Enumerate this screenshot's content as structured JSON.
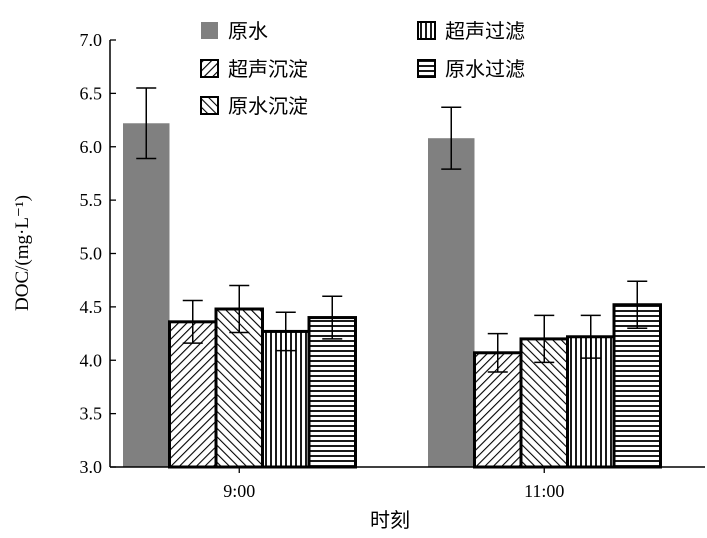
{
  "chart_data": {
    "type": "bar",
    "title": "",
    "xlabel": "时刻",
    "ylabel": "DOC/(mg·L⁻¹)",
    "ylim": [
      3.0,
      7.0
    ],
    "yticks": [
      "3.0",
      "3.5",
      "4.0",
      "4.5",
      "5.0",
      "5.5",
      "6.0",
      "6.5",
      "7.0"
    ],
    "categories": [
      "9:00",
      "11:00"
    ],
    "legend_position": "top",
    "series": [
      {
        "name": "原水",
        "pattern": "solid",
        "color": "#808080",
        "values": [
          6.22,
          6.08
        ],
        "errors": [
          0.33,
          0.29
        ]
      },
      {
        "name": "超声沉淀",
        "pattern": "diag-right",
        "values": [
          4.36,
          4.07
        ],
        "errors": [
          0.2,
          0.18
        ]
      },
      {
        "name": "原水沉淀",
        "pattern": "diag-left",
        "values": [
          4.48,
          4.2
        ],
        "errors": [
          0.22,
          0.22
        ]
      },
      {
        "name": "超声过滤",
        "pattern": "vertical",
        "values": [
          4.27,
          4.22
        ],
        "errors": [
          0.18,
          0.2
        ]
      },
      {
        "name": "原水过滤",
        "pattern": "horizontal",
        "values": [
          4.4,
          4.52
        ],
        "errors": [
          0.2,
          0.22
        ]
      }
    ]
  }
}
